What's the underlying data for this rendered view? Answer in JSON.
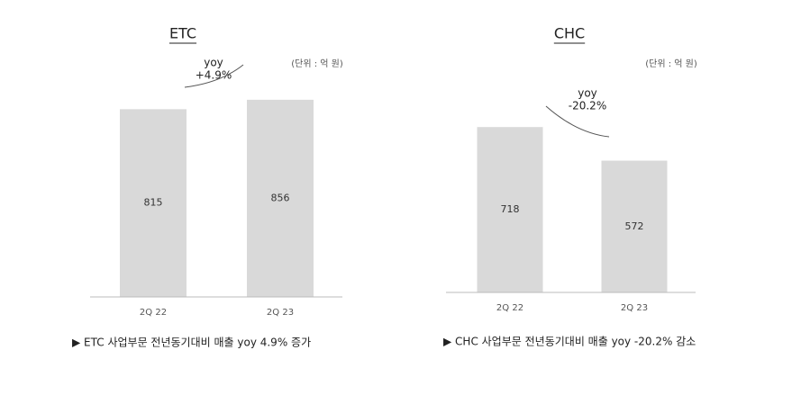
{
  "chart_data": [
    {
      "type": "bar",
      "title": "ETC",
      "unit_note": "(단위 : 억 원)",
      "categories": [
        "2Q 22",
        "2Q 23"
      ],
      "values": [
        815,
        856
      ],
      "color": "#d9d9d9",
      "annotation": [
        "yoy",
        "+4.9%"
      ],
      "caption": "▶ ETC 사업부문 전년동기대비 매출 yoy 4.9% 증가"
    },
    {
      "type": "bar",
      "title": "CHC",
      "unit_note": "(단위 : 억 원)",
      "categories": [
        "2Q 22",
        "2Q 23"
      ],
      "values": [
        718,
        572
      ],
      "color": "#d9d9d9",
      "annotation": [
        "yoy",
        "-20.2%"
      ],
      "caption": "▶ CHC 사업부문 전년동기대비 매출 yoy -20.2% 감소"
    }
  ]
}
